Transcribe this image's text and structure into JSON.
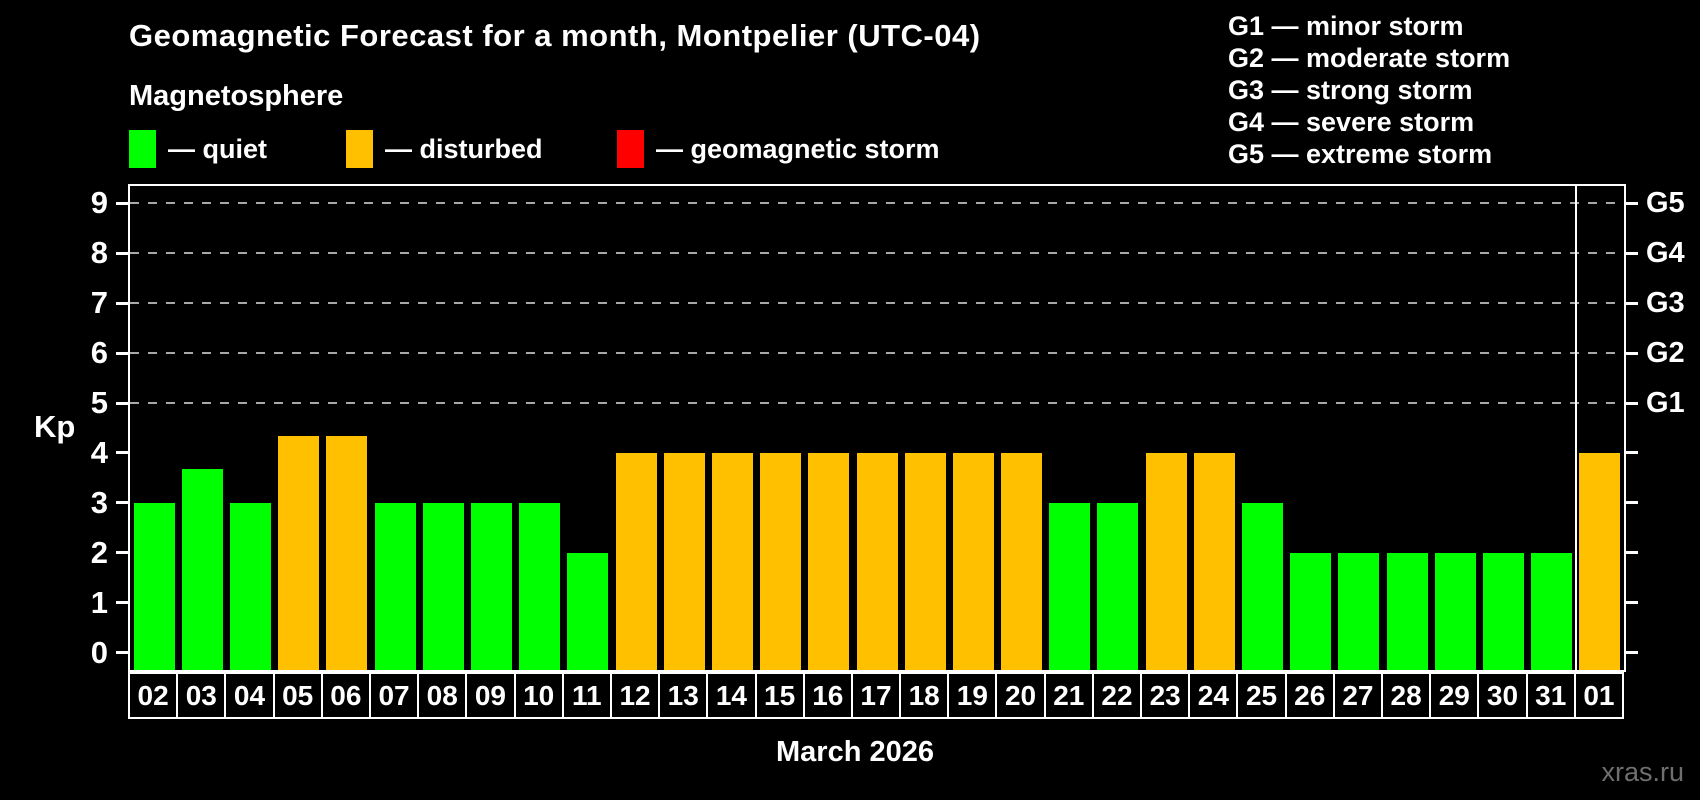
{
  "header": {
    "title": "Geomagnetic Forecast for a month, Montpelier (UTC-04)",
    "subtitle": "Magnetosphere"
  },
  "legend": {
    "items": [
      {
        "name": "quiet",
        "label": "— quiet",
        "color": "#00ff00"
      },
      {
        "name": "disturbed",
        "label": "— disturbed",
        "color": "#ffc000"
      },
      {
        "name": "storm",
        "label": "— geomagnetic storm",
        "color": "#ff0000"
      }
    ]
  },
  "g_legend": {
    "items": [
      "G1 — minor storm",
      "G2 — moderate storm",
      "G3 — strong storm",
      "G4 — severe storm",
      "G5 — extreme storm"
    ]
  },
  "footer": {
    "watermark": "xras.ru"
  },
  "chart_data": {
    "type": "bar",
    "title": "Geomagnetic Forecast for a month, Montpelier (UTC-04)",
    "xlabel": "March 2026",
    "ylabel": "Kp",
    "ylim": [
      -0.35,
      9.35
    ],
    "yticks": [
      0,
      1,
      2,
      3,
      4,
      5,
      6,
      7,
      8,
      9
    ],
    "gridlines": [
      5,
      6,
      7,
      8,
      9
    ],
    "grid": "dashed horizontal lines at Kp 5-9",
    "legend_position": "top-left",
    "right_axis_labels": {
      "5": "G1",
      "6": "G2",
      "7": "G3",
      "8": "G4",
      "9": "G5"
    },
    "categories": [
      "02",
      "03",
      "04",
      "05",
      "06",
      "07",
      "08",
      "09",
      "10",
      "11",
      "12",
      "13",
      "14",
      "15",
      "16",
      "17",
      "18",
      "19",
      "20",
      "21",
      "22",
      "23",
      "24",
      "25",
      "26",
      "27",
      "28",
      "29",
      "30",
      "31",
      "01"
    ],
    "values": [
      3,
      3.67,
      3,
      4.33,
      4.33,
      3,
      3,
      3,
      3,
      2,
      4,
      4,
      4,
      4,
      4,
      4,
      4,
      4,
      4,
      3,
      3,
      4,
      4,
      3,
      2,
      2,
      2,
      2,
      2,
      2,
      4
    ],
    "statuses": [
      "quiet",
      "quiet",
      "quiet",
      "disturbed",
      "disturbed",
      "quiet",
      "quiet",
      "quiet",
      "quiet",
      "quiet",
      "disturbed",
      "disturbed",
      "disturbed",
      "disturbed",
      "disturbed",
      "disturbed",
      "disturbed",
      "disturbed",
      "disturbed",
      "quiet",
      "quiet",
      "disturbed",
      "disturbed",
      "quiet",
      "quiet",
      "quiet",
      "quiet",
      "quiet",
      "quiet",
      "quiet",
      "disturbed"
    ],
    "palette": {
      "quiet": "#00ff00",
      "disturbed": "#ffc000",
      "storm": "#ff0000"
    },
    "month_boundary_after": "31"
  }
}
